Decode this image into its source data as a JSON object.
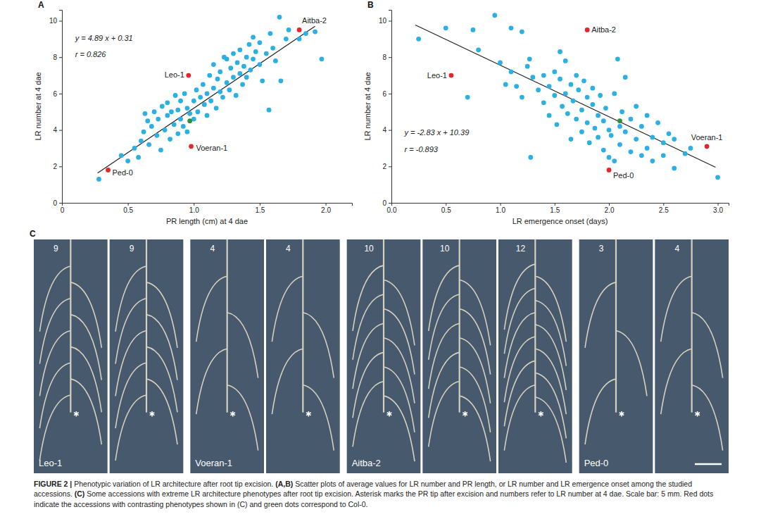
{
  "chart_data": [
    {
      "type": "scatter",
      "panel_label": "A",
      "x_label": "PR length (cm) at 4 dae",
      "y_label": "LR number at 4 dae",
      "xlim": [
        0,
        2.2
      ],
      "ylim": [
        0,
        10.6
      ],
      "xticks": [
        0,
        0.5,
        {
          "value": 1,
          "label": "1.0"
        },
        1.5,
        {
          "value": 2,
          "label": "2.0"
        }
      ],
      "yticks": [
        0,
        2,
        4,
        6,
        8,
        10
      ],
      "annotations": [
        "y = 4.89 x + 0.31",
        "r = 0.826"
      ],
      "fit": {
        "slope": 4.89,
        "intercept": 0.31,
        "x": [
          0.27,
          1.92
        ]
      },
      "series": [
        {
          "color": "#2bb0e4",
          "marker": "circle",
          "x": [
            0.28,
            0.45,
            0.5,
            0.55,
            0.58,
            0.6,
            0.62,
            0.63,
            0.65,
            0.66,
            0.68,
            0.7,
            0.72,
            0.73,
            0.75,
            0.76,
            0.78,
            0.8,
            0.8,
            0.82,
            0.83,
            0.85,
            0.86,
            0.88,
            0.88,
            0.9,
            0.9,
            0.92,
            0.93,
            0.95,
            0.95,
            0.97,
            1.0,
            1.0,
            1.02,
            1.03,
            1.05,
            1.07,
            1.08,
            1.1,
            1.1,
            1.12,
            1.13,
            1.15,
            1.15,
            1.17,
            1.18,
            1.2,
            1.2,
            1.22,
            1.23,
            1.25,
            1.25,
            1.27,
            1.28,
            1.3,
            1.3,
            1.32,
            1.33,
            1.35,
            1.35,
            1.37,
            1.38,
            1.4,
            1.4,
            1.42,
            1.43,
            1.45,
            1.45,
            1.47,
            1.5,
            1.5,
            1.52,
            1.55,
            1.57,
            1.58,
            1.6,
            1.62,
            1.65,
            1.66,
            1.7,
            1.72,
            1.8,
            1.85,
            1.92,
            1.97
          ],
          "values": [
            1.3,
            2.6,
            2.3,
            3.0,
            2.5,
            3.4,
            3.9,
            4.9,
            4.5,
            3.2,
            4.2,
            5.0,
            3.7,
            4.6,
            2.9,
            5.3,
            4.0,
            5.5,
            4.8,
            3.5,
            5.0,
            4.3,
            5.9,
            3.8,
            5.1,
            4.6,
            5.6,
            4.2,
            6.0,
            5.2,
            3.9,
            4.9,
            5.6,
            4.6,
            6.2,
            5.0,
            5.8,
            6.5,
            5.4,
            4.8,
            6.0,
            7.0,
            5.6,
            6.3,
            7.6,
            5.2,
            6.8,
            6.1,
            7.2,
            5.8,
            8.0,
            6.6,
            7.9,
            6.2,
            7.4,
            6.9,
            8.2,
            5.9,
            7.7,
            7.1,
            8.4,
            6.5,
            7.5,
            8.0,
            6.9,
            8.7,
            7.3,
            7.9,
            9.1,
            8.3,
            7.6,
            8.8,
            6.7,
            8.2,
            5.1,
            9.3,
            8.5,
            7.8,
            10.2,
            6.7,
            9.0,
            9.5,
            9.0,
            9.3,
            9.4,
            7.9
          ]
        },
        {
          "color": "#e3262b",
          "marker": "circle",
          "labels": [
            "Leo-1",
            "Aitba-2",
            "Voeran-1",
            "Ped-0"
          ],
          "x": [
            0.96,
            1.8,
            0.98,
            0.35
          ],
          "values": [
            7.0,
            9.5,
            3.1,
            1.8
          ]
        },
        {
          "color": "#2f8f3a",
          "marker": "circle",
          "x": [
            0.97
          ],
          "values": [
            4.5
          ]
        }
      ]
    },
    {
      "type": "scatter",
      "panel_label": "B",
      "x_label": "LR emergence onset (days)",
      "y_label": "LR number at 4 dae",
      "xlim": [
        0,
        3.1
      ],
      "ylim": [
        0,
        10.6
      ],
      "xticks": [
        {
          "value": 0,
          "label": "0.0"
        },
        0.5,
        {
          "value": 1,
          "label": "1.0"
        },
        1.5,
        {
          "value": 2,
          "label": "2.0"
        },
        2.5,
        {
          "value": 3,
          "label": "3.0"
        }
      ],
      "yticks": [
        0,
        2,
        4,
        6,
        8,
        10
      ],
      "annotations": [
        "y = -2.83 x + 10.39",
        "r = -0.893"
      ],
      "fit": {
        "slope": -2.83,
        "intercept": 10.39,
        "x": [
          0.22,
          2.98
        ]
      },
      "series": [
        {
          "color": "#2bb0e4",
          "marker": "circle",
          "x": [
            0.25,
            0.5,
            0.7,
            0.75,
            0.8,
            0.95,
            1.0,
            1.05,
            1.1,
            1.1,
            1.15,
            1.2,
            1.2,
            1.25,
            1.27,
            1.28,
            1.3,
            1.35,
            1.4,
            1.4,
            1.45,
            1.45,
            1.5,
            1.5,
            1.52,
            1.55,
            1.55,
            1.57,
            1.6,
            1.6,
            1.62,
            1.65,
            1.65,
            1.67,
            1.7,
            1.7,
            1.72,
            1.75,
            1.75,
            1.77,
            1.8,
            1.8,
            1.82,
            1.85,
            1.85,
            1.87,
            1.9,
            1.9,
            1.92,
            1.95,
            1.95,
            1.97,
            2.0,
            2.0,
            2.02,
            2.05,
            2.05,
            2.08,
            2.1,
            2.1,
            2.12,
            2.15,
            2.15,
            2.2,
            2.2,
            2.25,
            2.25,
            2.3,
            2.3,
            2.35,
            2.35,
            2.4,
            2.4,
            2.45,
            2.5,
            2.5,
            2.55,
            2.6,
            2.6,
            2.7,
            2.75,
            3.0
          ],
          "values": [
            9.0,
            9.6,
            5.8,
            9.5,
            8.4,
            10.3,
            7.7,
            6.5,
            9.6,
            7.2,
            6.4,
            9.4,
            5.8,
            7.5,
            7.9,
            2.5,
            6.9,
            6.2,
            5.5,
            7.0,
            4.8,
            6.4,
            5.9,
            7.2,
            4.3,
            6.8,
            8.3,
            5.3,
            6.0,
            7.8,
            4.9,
            6.5,
            3.5,
            5.6,
            7.0,
            4.6,
            6.2,
            5.1,
            3.9,
            6.7,
            4.4,
            5.8,
            3.3,
            5.4,
            6.3,
            4.1,
            4.8,
            3.6,
            5.9,
            4.5,
            2.9,
            5.2,
            4.0,
            2.5,
            3.7,
            6.0,
            2.3,
            7.9,
            4.2,
            3.2,
            5.0,
            3.9,
            6.9,
            4.6,
            2.8,
            3.5,
            5.3,
            4.2,
            2.6,
            3.0,
            4.8,
            3.6,
            2.3,
            4.4,
            3.3,
            2.6,
            3.8,
            3.5,
            1.9,
            2.7,
            3.0,
            1.4
          ]
        },
        {
          "color": "#e3262b",
          "marker": "circle",
          "labels": [
            "Leo-1",
            "Aitba-2",
            "Voeran-1",
            "Ped-0"
          ],
          "x": [
            0.55,
            1.8,
            2.9,
            2.0
          ],
          "values": [
            7.0,
            9.5,
            3.1,
            1.8
          ]
        },
        {
          "color": "#2f8f3a",
          "marker": "circle",
          "x": [
            2.1
          ],
          "values": [
            4.5
          ]
        }
      ]
    }
  ],
  "panel_c": {
    "panel_label": "C",
    "images": [
      {
        "accession": "Leo-1",
        "lr_numbers": [
          9,
          9
        ]
      },
      {
        "accession": "Voeran-1",
        "lr_numbers": [
          4,
          4
        ]
      },
      {
        "accession": "Aitba-2",
        "lr_numbers": [
          10,
          10,
          12
        ]
      },
      {
        "accession": "Ped-0",
        "lr_numbers": [
          3,
          4
        ]
      }
    ]
  },
  "caption": [
    {
      "text": "FIGURE 2 | ",
      "bold": true
    },
    {
      "text": "Phenotypic variation of LR architecture after root tip excision. ",
      "bold": false
    },
    {
      "text": "(A,B)",
      "bold": true
    },
    {
      "text": " Scatter plots of average values for LR number and PR length, or LR number and LR emergence onset among the studied accessions. ",
      "bold": false
    },
    {
      "text": "(C)",
      "bold": true
    },
    {
      "text": " Some accessions with extreme LR architecture phenotypes after root tip excision. Asterisk marks the PR tip after excision and numbers refer to LR number at 4 dae. Scale bar: 5 mm. Red dots indicate the accessions with contrasting phenotypes shown in (C) and green dots correspond to Col-0.",
      "bold": false
    }
  ]
}
